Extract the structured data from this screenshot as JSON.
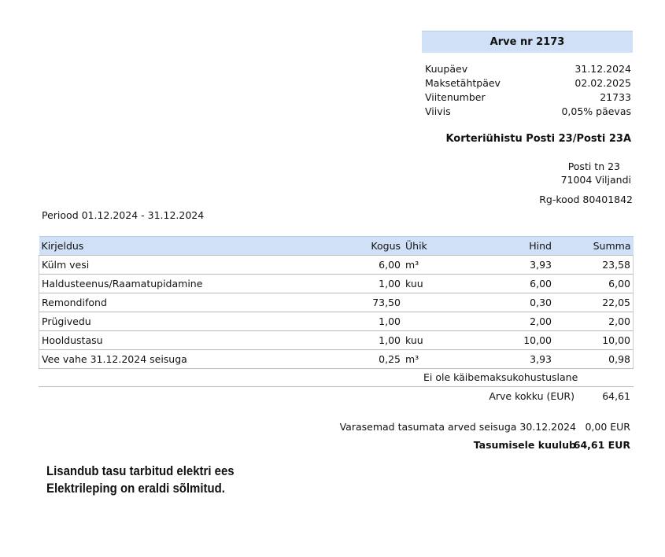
{
  "invoice": {
    "title": "Arve nr 2173",
    "meta": [
      {
        "label": "Kuupäev",
        "value": "31.12.2024"
      },
      {
        "label": "Maksetähtpäev",
        "value": "02.02.2025"
      },
      {
        "label": "Viitenumber",
        "value": "21733"
      },
      {
        "label": "Viivis",
        "value": "0,05% päevas"
      }
    ],
    "company": "Korteriühistu Posti 23/Posti 23A",
    "address_line1": "Posti tn 23",
    "address_line2": "71004 Viljandi",
    "reg_code": "Rg-kood 80401842",
    "period": "Periood 01.12.2024 - 31.12.2024"
  },
  "table": {
    "headers": {
      "description": "Kirjeldus",
      "quantity": "Kogus",
      "unit": "Ühik",
      "price": "Hind",
      "sum": "Summa"
    },
    "rows": [
      {
        "description": "Külm vesi",
        "quantity": "6,00",
        "unit": "m³",
        "price": "3,93",
        "sum": "23,58"
      },
      {
        "description": "Haldusteenus/Raamatupidamine",
        "quantity": "1,00",
        "unit": "kuu",
        "price": "6,00",
        "sum": "6,00"
      },
      {
        "description": "Remondifond",
        "quantity": "73,50",
        "unit": "",
        "price": "0,30",
        "sum": "22,05"
      },
      {
        "description": "Prügivedu",
        "quantity": "1,00",
        "unit": "",
        "price": "2,00",
        "sum": "2,00"
      },
      {
        "description": "Hooldustasu",
        "quantity": "1,00",
        "unit": "kuu",
        "price": "10,00",
        "sum": "10,00"
      },
      {
        "description": "Vee vahe 31.12.2024 seisuga",
        "quantity": "0,25",
        "unit": "m³",
        "price": "3,93",
        "sum": "0,98"
      }
    ]
  },
  "totals": {
    "vat_note": "Ei ole käibemaksukohustuslane",
    "total_label": "Arve kokku  (EUR)",
    "total_value": "64,61",
    "previous_label": "Varasemad tasumata arved seisuga 30.12.2024",
    "previous_value": "0,00 EUR",
    "due_label": "Tasumisele kuulub",
    "due_value": "64,61 EUR"
  },
  "notes": {
    "line1": "Lisandub tasu tarbitud elektri ees",
    "line2": "Elektrileping on eraldi sõlmitud."
  }
}
